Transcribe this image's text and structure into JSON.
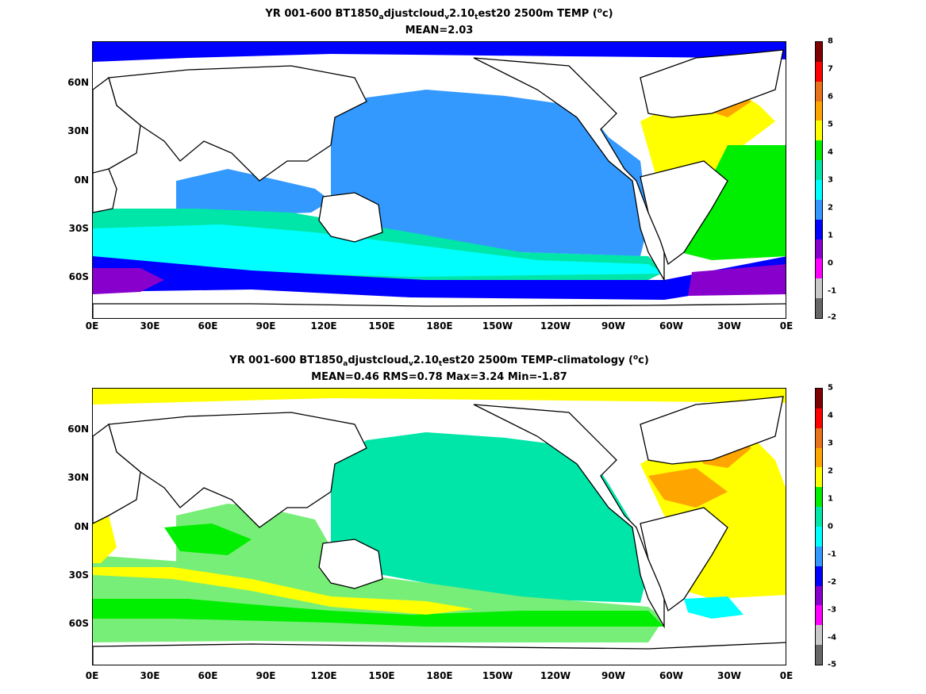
{
  "panels": [
    {
      "title_main": "YR 001-600 BT1850",
      "title_s1": "a",
      "title_m2": "djustcloud",
      "title_s2": "v",
      "title_m3": "2.10",
      "title_s3": "t",
      "title_m4": "est20 2500m TEMP (",
      "title_sup": "o",
      "title_end": "c)",
      "stats": "MEAN=2.03",
      "colorbar_labels": [
        "8",
        "7",
        "6",
        "5",
        "4",
        "3",
        "2",
        "1",
        "0",
        "-1",
        "-2"
      ],
      "colorbar_colors": [
        "#7f0000",
        "#ff0000",
        "#e8731a",
        "#ffa500",
        "#ffff00",
        "#00ee00",
        "#00e6a8",
        "#00ffff",
        "#3399ff",
        "#0000ff",
        "#8800cc",
        "#ff00ff",
        "#c8c8c8",
        "#666666"
      ]
    },
    {
      "title_main": "YR 001-600 BT1850",
      "title_s1": "a",
      "title_m2": "djustcloud",
      "title_s2": "v",
      "title_m3": "2.10",
      "title_s3": "t",
      "title_m4": "est20 2500m TEMP-climatology (",
      "title_sup": "o",
      "title_end": "c)",
      "stats": "MEAN=0.46   RMS=0.78   Max=3.24   Min=-1.87",
      "colorbar_labels": [
        "5",
        "4",
        "3",
        "2",
        "1",
        "0",
        "-1",
        "-2",
        "-3",
        "-4",
        "-5"
      ],
      "colorbar_colors": [
        "#7f0000",
        "#ff0000",
        "#e8731a",
        "#ffa500",
        "#ffff00",
        "#00ee00",
        "#00e6a8",
        "#00ffff",
        "#3399ff",
        "#0000ff",
        "#8800cc",
        "#ff00ff",
        "#c8c8c8",
        "#666666"
      ]
    }
  ],
  "x_ticks": [
    "0E",
    "30E",
    "60E",
    "90E",
    "120E",
    "150E",
    "180E",
    "150W",
    "120W",
    "90W",
    "60W",
    "30W",
    "0E"
  ],
  "y_ticks": [
    "60N",
    "30N",
    "0N",
    "30S",
    "60S"
  ]
}
